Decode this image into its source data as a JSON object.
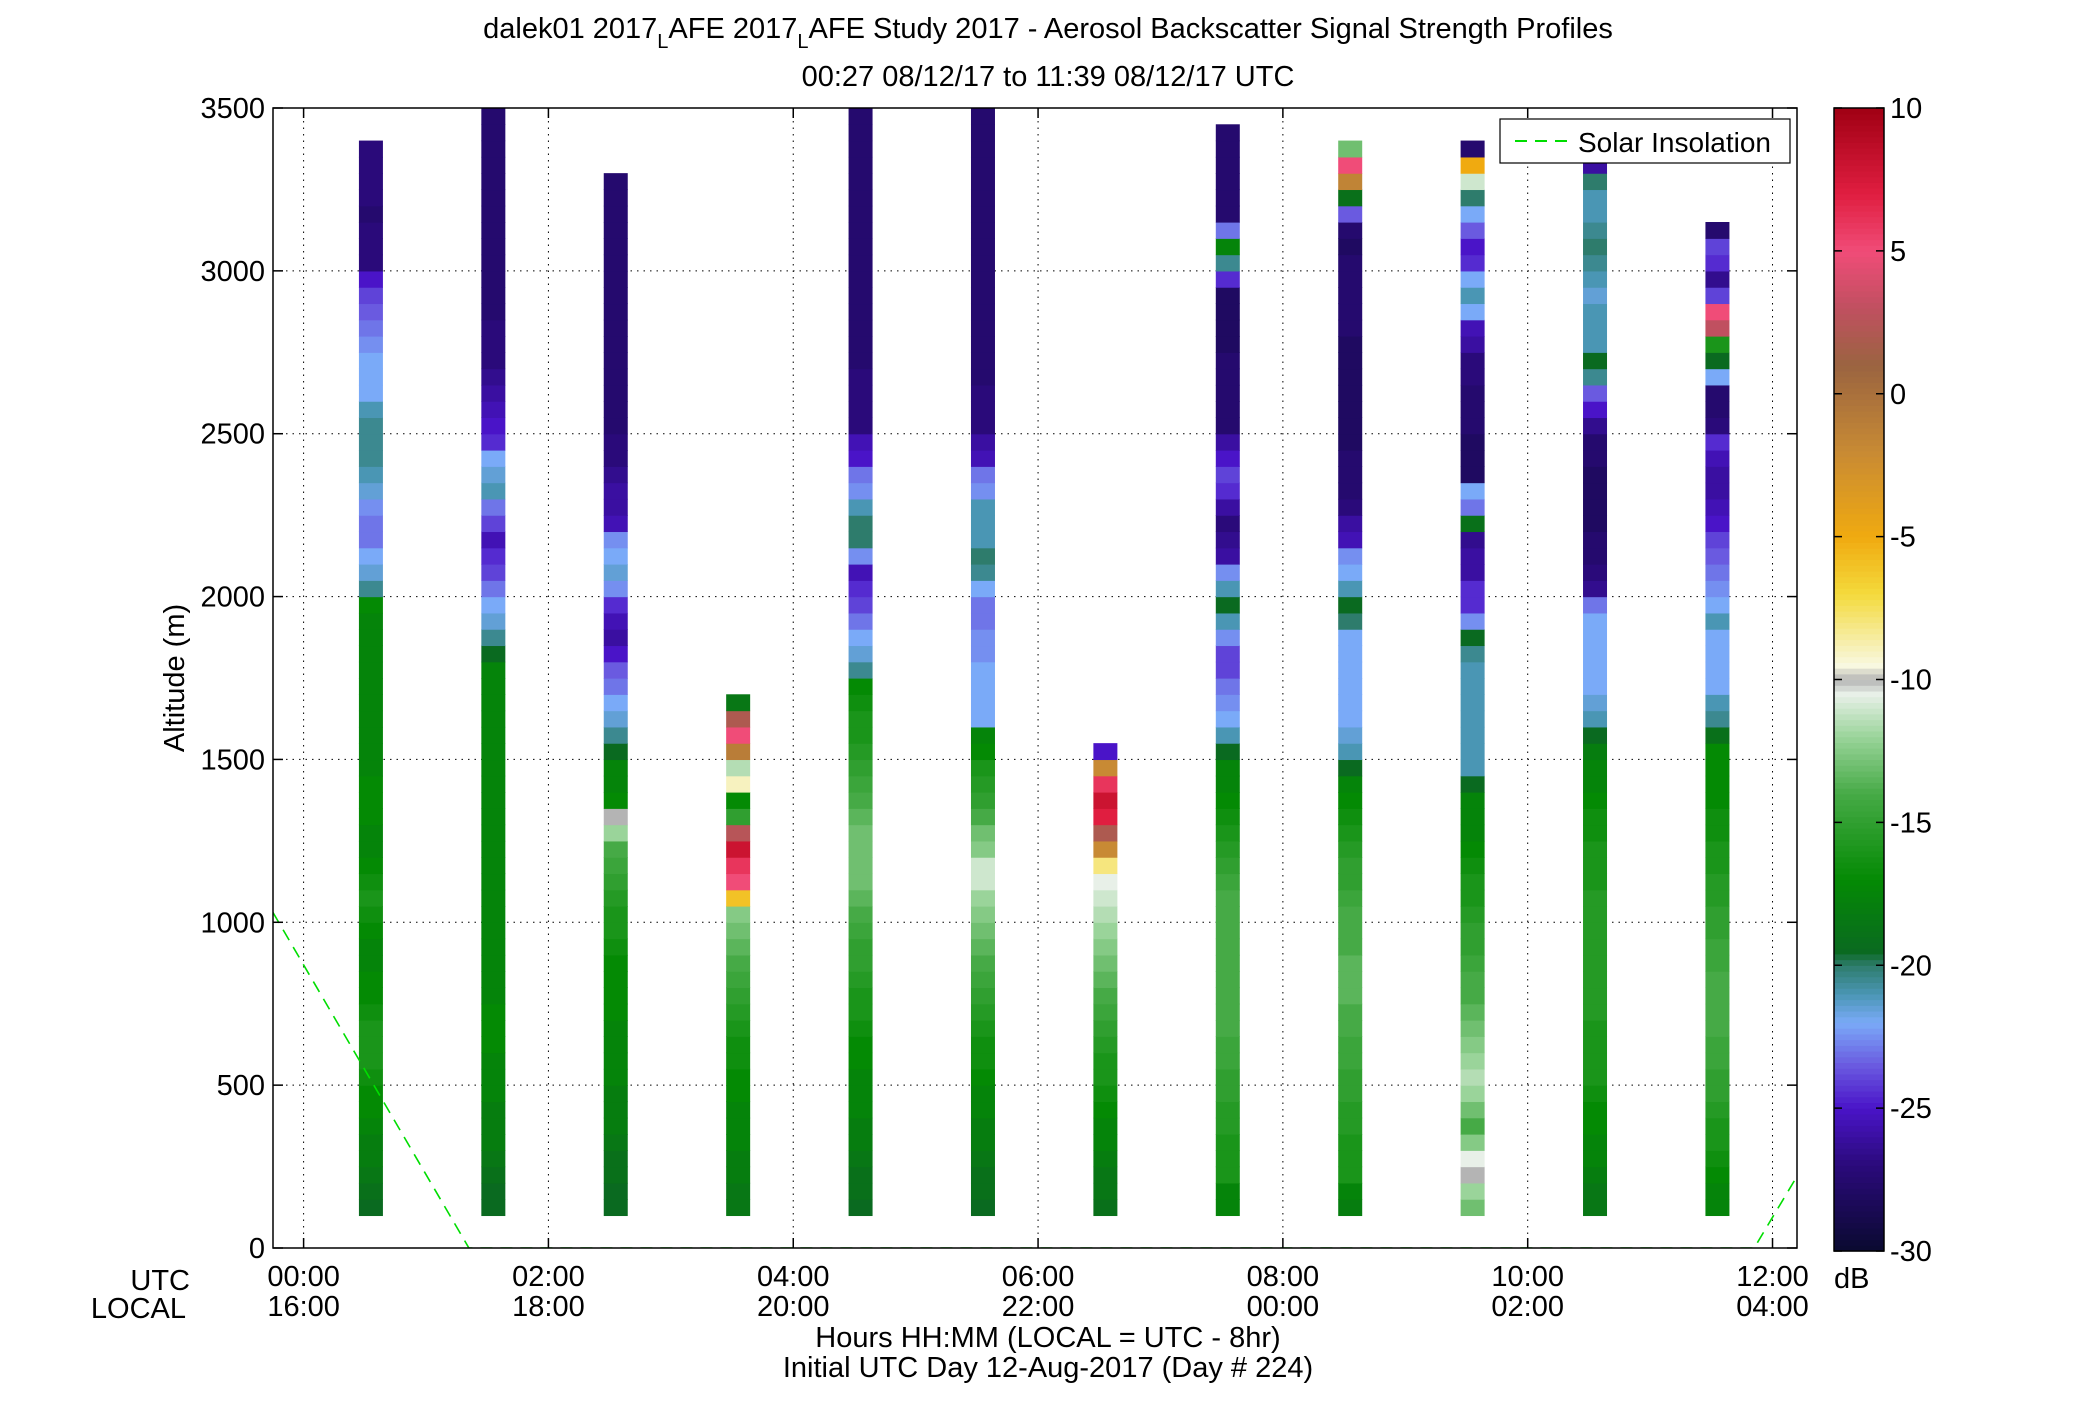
{
  "figure": {
    "title_line1_prefix": "dalek01 2017",
    "title_sub1": "L",
    "title_mid": "AFE 2017",
    "title_sub2": "L",
    "title_suffix": "AFE Study 2017 - Aerosol Backscatter Signal Strength Profiles",
    "title_line2": "00:27 08/12/17 to 11:39 08/12/17  UTC"
  },
  "chart_data": {
    "type": "heatmap",
    "ylabel": "Altitude (m)",
    "ylim": [
      0,
      3500
    ],
    "yticks": [
      0,
      500,
      1000,
      1500,
      2000,
      2500,
      3000,
      3500
    ],
    "xlim_hours": [
      -0.25,
      12.2
    ],
    "xticks_hours": [
      0,
      2,
      4,
      6,
      8,
      10,
      12
    ],
    "xtick_labels_utc": [
      "00:00",
      "02:00",
      "04:00",
      "06:00",
      "08:00",
      "10:00",
      "12:00"
    ],
    "xtick_labels_local": [
      "16:00",
      "18:00",
      "20:00",
      "22:00",
      "00:00",
      "02:00",
      "04:00"
    ],
    "row_label_utc": "UTC",
    "row_label_local": "LOCAL",
    "xlabel_line1": "Hours HH:MM  (LOCAL = UTC - 8hr)",
    "xlabel_line2": "Initial UTC Day 12-Aug-2017 (Day # 224)",
    "grid": true,
    "legend": {
      "entry": "Solar Insolation",
      "placement": "top-right",
      "line_color": "#00dd00"
    },
    "solar_insolation": [
      [
        -0.25,
        1030
      ],
      [
        1.35,
        0
      ],
      [
        11.85,
        0
      ],
      [
        12.2,
        220
      ]
    ],
    "colorbar": {
      "range": [
        -30,
        10
      ],
      "ticks": [
        10,
        5,
        0,
        -5,
        -10,
        -15,
        -20,
        -25,
        -30
      ],
      "unit": "dB",
      "stops": [
        [
          -30,
          "#0a0a30"
        ],
        [
          -27,
          "#2a0a7a"
        ],
        [
          -25,
          "#4a14c8"
        ],
        [
          -23.5,
          "#6a5ae0"
        ],
        [
          -22,
          "#7aaaf8"
        ],
        [
          -21,
          "#4a96b4"
        ],
        [
          -20,
          "#2e7c6c"
        ],
        [
          -19.5,
          "#0a6a20"
        ],
        [
          -17,
          "#048a04"
        ],
        [
          -14,
          "#46aa46"
        ],
        [
          -12,
          "#9ad49a"
        ],
        [
          -10.5,
          "#e8f0e8"
        ],
        [
          -10,
          "#b4b4b4"
        ],
        [
          -9.5,
          "#f8f8e0"
        ],
        [
          -7,
          "#f4da3c"
        ],
        [
          -5,
          "#f0aa10"
        ],
        [
          -2,
          "#c88a34"
        ],
        [
          1,
          "#9a6440"
        ],
        [
          3,
          "#c05060"
        ],
        [
          5,
          "#f04c78"
        ],
        [
          7,
          "#e01e40"
        ],
        [
          10,
          "#a00014"
        ]
      ]
    },
    "profile_bin_m": 50,
    "profiles": [
      {
        "time": 0.55,
        "base": 100,
        "values": [
          -19.5,
          -19,
          -18.5,
          -18,
          -18,
          -17.5,
          -17,
          -17,
          -16.5,
          -16,
          -16,
          -16,
          -16.5,
          -17,
          -17,
          -17.5,
          -17.5,
          -17,
          -16.5,
          -16,
          -16.5,
          -17,
          -17.5,
          -17.5,
          -17,
          -17,
          -17,
          -17.5,
          -17.5,
          -17.5,
          -17.5,
          -17.5,
          -17.5,
          -17.5,
          -17.5,
          -17.5,
          -17.5,
          -17,
          -20.5,
          -21.5,
          -22,
          -23,
          -23,
          -22.5,
          -21.5,
          -21,
          -20.5,
          -20.5,
          -20.5,
          -21,
          -22,
          -22,
          -22,
          -22.5,
          -23,
          -23.5,
          -24,
          -25,
          -27,
          -27,
          -27,
          -27.5,
          -27,
          -27,
          -27,
          -27
        ]
      },
      {
        "time": 1.55,
        "base": 100,
        "values": [
          -19.5,
          -19.5,
          -19,
          -18.5,
          -18,
          -18,
          -18,
          -17.5,
          -17.5,
          -17.5,
          -17,
          -17,
          -17,
          -17.5,
          -17.5,
          -17.5,
          -17.5,
          -17.5,
          -17.5,
          -17.5,
          -17.5,
          -17.5,
          -17.5,
          -17.5,
          -17.5,
          -17.5,
          -17.5,
          -17.5,
          -17.5,
          -17.5,
          -17.5,
          -17.5,
          -17.5,
          -17.5,
          -19.5,
          -20.5,
          -21.5,
          -22,
          -23,
          -24,
          -24.5,
          -25.5,
          -24,
          -23,
          -21,
          -21.5,
          -22,
          -24.5,
          -25,
          -25.5,
          -26,
          -26.5,
          -27,
          -27,
          -27,
          -27.5,
          -27.5,
          -27.5,
          -27.5,
          -27.5,
          -27.5,
          -27.5,
          -27.5,
          -27.5,
          -27.5,
          -27.5,
          -27.5,
          -27.5
        ]
      },
      {
        "time": 2.55,
        "base": 100,
        "values": [
          -19.5,
          -19.5,
          -19,
          -19,
          -18.5,
          -18,
          -18,
          -18,
          -17.5,
          -17.5,
          -17.5,
          -17.5,
          -17,
          -17,
          -17,
          -17,
          -16.5,
          -16,
          -16,
          -15.5,
          -15,
          -14.5,
          -14,
          -12,
          -10,
          -17,
          -17.5,
          -17.5,
          -19.5,
          -20.5,
          -21.5,
          -22,
          -23,
          -23.5,
          -25,
          -26,
          -25.5,
          -24.5,
          -22.5,
          -21.5,
          -22,
          -22.5,
          -25.5,
          -26,
          -26,
          -26.5,
          -27,
          -27,
          -27.5,
          -27.5,
          -27.5,
          -27.5,
          -27.5,
          -27.5,
          -27.5,
          -27.5,
          -27.5,
          -27.5,
          -27.5,
          -27.5,
          -27.5,
          -27.5,
          -27.5,
          -27.5
        ]
      },
      {
        "time": 3.55,
        "base": 100,
        "values": [
          -18.5,
          -18.5,
          -18,
          -18,
          -17.5,
          -17.5,
          -17.5,
          -17,
          -17,
          -16.5,
          -16.5,
          -16,
          -15.5,
          -15,
          -14.5,
          -14,
          -13.5,
          -13,
          -12.5,
          -6,
          5,
          6,
          8,
          2.5,
          -15,
          -17,
          -9,
          -11.5,
          -1,
          5,
          2,
          -18.5
        ]
      },
      {
        "time": 4.55,
        "base": 100,
        "values": [
          -19.5,
          -19,
          -19,
          -18.5,
          -18,
          -18,
          -17.5,
          -17.5,
          -17.5,
          -17,
          -17,
          -16.5,
          -16,
          -16,
          -15.5,
          -15,
          -15,
          -14.5,
          -14,
          -13.5,
          -13,
          -13,
          -13,
          -13,
          -13.5,
          -14,
          -14.5,
          -15,
          -15.5,
          -16,
          -16,
          -16.5,
          -17,
          -20.5,
          -21.5,
          -22,
          -23,
          -24,
          -24.5,
          -25.5,
          -22.5,
          -20,
          -20,
          -21,
          -22.5,
          -23,
          -25,
          -25.5,
          -27,
          -27,
          -27,
          -27,
          -27.5,
          -27.5,
          -27.5,
          -27.5,
          -27.5,
          -27.5,
          -27.5,
          -27.5,
          -27.5,
          -27.5,
          -27.5,
          -27.5,
          -27.5,
          -27.5,
          -27.5,
          -27.5
        ]
      },
      {
        "time": 5.55,
        "base": 100,
        "values": [
          -19.5,
          -19,
          -19,
          -18.5,
          -18,
          -18,
          -17.5,
          -17.5,
          -17,
          -16.5,
          -16.5,
          -16,
          -15.5,
          -15,
          -14.5,
          -14,
          -13.5,
          -13,
          -12.5,
          -12,
          -11,
          -11,
          -12.5,
          -13,
          -14,
          -15,
          -15.5,
          -16,
          -17,
          -17.5,
          -22,
          -22,
          -22,
          -22,
          -22.5,
          -22.5,
          -23,
          -23,
          -22,
          -20.5,
          -20,
          -21,
          -21,
          -21,
          -22.5,
          -23,
          -25.5,
          -26,
          -27,
          -27,
          -27,
          -27.5,
          -27.5,
          -27.5,
          -27.5,
          -27.5,
          -27.5,
          -27.5,
          -27.5,
          -27.5,
          -27.5,
          -27.5,
          -27.5,
          -27.5,
          -27.5,
          -27.5,
          -27.5,
          -27.5
        ]
      },
      {
        "time": 6.55,
        "base": 100,
        "values": [
          -19,
          -18.5,
          -18.5,
          -18,
          -17.5,
          -17.5,
          -17,
          -16.5,
          -16,
          -16,
          -15.5,
          -15,
          -14.5,
          -14,
          -13.5,
          -13,
          -12.5,
          -12,
          -11.5,
          -11,
          -10.5,
          -8,
          -2,
          2,
          7,
          8,
          6,
          -2,
          -25
        ]
      },
      {
        "time": 7.55,
        "base": 100,
        "values": [
          -17.5,
          -17.5,
          -16,
          -16,
          -16,
          -15.5,
          -15.5,
          -15,
          -15,
          -14.5,
          -14.5,
          -14,
          -14,
          -14,
          -14,
          -14,
          -14,
          -14,
          -14,
          -14,
          -14.5,
          -15,
          -15.5,
          -16,
          -16.5,
          -17,
          -17.5,
          -17.5,
          -19.5,
          -21,
          -22,
          -22.5,
          -23,
          -24,
          -24,
          -22.5,
          -21,
          -19.5,
          -21,
          -22.5,
          -26,
          -26.5,
          -27,
          -26,
          -24.5,
          -24,
          -25,
          -26,
          -27.5,
          -27.5,
          -27.5,
          -27.5,
          -27.5,
          -28,
          -28,
          -28,
          -28,
          -24.5,
          -20.5,
          -17.5,
          -23,
          -27.5,
          -27.5,
          -27.5,
          -27.5,
          -27.5,
          -27.5
        ]
      },
      {
        "time": 8.55,
        "base": 100,
        "values": [
          -18,
          -17.5,
          -16,
          -16,
          -16,
          -15.5,
          -15.5,
          -15,
          -15,
          -14.5,
          -14.5,
          -14,
          -14,
          -13.5,
          -13.5,
          -13.5,
          -14,
          -14,
          -14,
          -14.5,
          -15,
          -15,
          -15.5,
          -16,
          -16.5,
          -17,
          -17.5,
          -19.5,
          -21,
          -21.5,
          -22,
          -22,
          -22,
          -22,
          -22,
          -22,
          -20,
          -19.5,
          -21,
          -22,
          -22.5,
          -25.5,
          -26,
          -27,
          -27.5,
          -27.5,
          -27.5,
          -28,
          -28,
          -28,
          -28,
          -28,
          -28,
          -28,
          -27.5,
          -27.5,
          -27.5,
          -27.5,
          -27.5,
          -28,
          -27.5,
          -23.5,
          -19,
          -1.5,
          5,
          -13
        ]
      },
      {
        "time": 9.55,
        "base": 100,
        "values": [
          -13,
          -12,
          -10,
          -10.5,
          -12.5,
          -14,
          -13,
          -12,
          -11.5,
          -12,
          -12.5,
          -13,
          -13.5,
          -14,
          -14,
          -14.5,
          -15,
          -15,
          -15.5,
          -16,
          -16,
          -16.5,
          -17,
          -17.5,
          -17.5,
          -17.5,
          -19.5,
          -21,
          -21,
          -21,
          -21,
          -21,
          -21,
          -21,
          -20.5,
          -19.5,
          -22.5,
          -24.5,
          -24.5,
          -26,
          -26,
          -26.5,
          -19,
          -23,
          -22,
          -28,
          -28,
          -28,
          -27.5,
          -27.5,
          -27.5,
          -27,
          -27,
          -26,
          -25.5,
          -22,
          -21,
          -22,
          -24.5,
          -25,
          -23.5,
          -22,
          -20,
          -11,
          -5,
          -27.5
        ]
      },
      {
        "time": 10.55,
        "base": 100,
        "values": [
          -18.5,
          -18.5,
          -18,
          -17.5,
          -17.5,
          -17,
          -17,
          -16.5,
          -16,
          -16,
          -16,
          -16,
          -15.5,
          -15.5,
          -15.5,
          -15.5,
          -15.5,
          -15.5,
          -15.5,
          -15.5,
          -16,
          -16,
          -16,
          -16.5,
          -16.5,
          -17,
          -17.5,
          -17.5,
          -18,
          -19.5,
          -21,
          -21.5,
          -22,
          -22,
          -22,
          -22,
          -22,
          -23,
          -26.5,
          -27,
          -27.5,
          -27.5,
          -28,
          -28,
          -28,
          -28,
          -27.5,
          -27.5,
          -26.5,
          -25,
          -23.5,
          -20.5,
          -19.5,
          -21,
          -21,
          -21,
          -21.5,
          -21,
          -20.5,
          -20,
          -20.5,
          -21,
          -21,
          -20,
          -26,
          -27
        ]
      },
      {
        "time": 11.55,
        "base": 100,
        "values": [
          -17.5,
          -17.5,
          -17,
          -16.5,
          -16,
          -16,
          -15.5,
          -15,
          -15,
          -14.5,
          -14.5,
          -14,
          -14,
          -14,
          -14,
          -14.5,
          -14.5,
          -15,
          -15,
          -15.5,
          -15.5,
          -16,
          -16,
          -16.5,
          -16.5,
          -17,
          -17,
          -17,
          -17,
          -19,
          -20.5,
          -21,
          -22,
          -22,
          -22,
          -22,
          -21,
          -22,
          -22.5,
          -23,
          -23.5,
          -24,
          -25,
          -25.5,
          -26,
          -26,
          -25.5,
          -24.5,
          -27,
          -27.5,
          -27.5,
          -22,
          -19.5,
          -16,
          3,
          5,
          -24,
          -26.5,
          -24.5,
          -24,
          -27.5
        ]
      }
    ]
  }
}
